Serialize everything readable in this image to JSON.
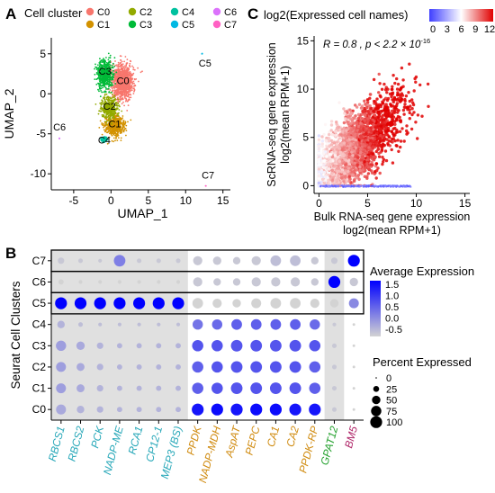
{
  "panels": {
    "A": {
      "letter": "A",
      "legend_title": "Cell cluster",
      "legend": [
        {
          "label": "C0",
          "color": "#f8766d"
        },
        {
          "label": "C1",
          "color": "#d39200"
        },
        {
          "label": "C2",
          "color": "#93aa00"
        },
        {
          "label": "C3",
          "color": "#00ba38"
        },
        {
          "label": "C4",
          "color": "#00c19f"
        },
        {
          "label": "C5",
          "color": "#00b9e3"
        },
        {
          "label": "C6",
          "color": "#db72fb"
        },
        {
          "label": "C7",
          "color": "#ff61c3"
        }
      ],
      "cluster_labels": [
        {
          "label": "C0",
          "x": 1.6,
          "y": 1.2
        },
        {
          "label": "C3",
          "x": -0.8,
          "y": 2.4
        },
        {
          "label": "C2",
          "x": -0.2,
          "y": -2.0
        },
        {
          "label": "C1",
          "x": 0.5,
          "y": -4.2
        },
        {
          "label": "C4",
          "x": -0.9,
          "y": -6.2
        },
        {
          "label": "C5",
          "x": 12.6,
          "y": 3.4
        },
        {
          "label": "C6",
          "x": -6.9,
          "y": -4.6
        },
        {
          "label": "C7",
          "x": 13.0,
          "y": -10.6
        }
      ]
    },
    "C": {
      "letter": "C",
      "colorbar_title": "log2(Expressed cell names)",
      "colorbar_ticks": [
        "0",
        "3",
        "6",
        "9",
        "12"
      ],
      "stat_text": "R = 0.8 , p < 2.2 × 10",
      "stat_exp": "-16"
    },
    "B": {
      "letter": "B",
      "size_legend_title": "Percent Expressed",
      "color_legend_title": "Average Expression",
      "color_ticks": [
        "1.5",
        "1.0",
        "0.5",
        "0.0",
        "-0.5"
      ],
      "size_ticks": [
        "0",
        "25",
        "50",
        "75",
        "100"
      ]
    }
  },
  "chart_data": [
    {
      "type": "scatter",
      "title": "",
      "xlabel": "UMAP_1",
      "ylabel": "UMAP_2",
      "xlim": [
        -8,
        16
      ],
      "ylim": [
        -12,
        7
      ],
      "xticks": [
        -5,
        0,
        5,
        10,
        15
      ],
      "yticks": [
        -10,
        -5,
        0,
        5
      ],
      "series": [
        {
          "name": "C0",
          "cx": 1.5,
          "cy": 1.5,
          "sx": 1.3,
          "sy": 2.0
        },
        {
          "name": "C1",
          "cx": 0.5,
          "cy": -4.0,
          "sx": 1.2,
          "sy": 1.2
        },
        {
          "name": "C2",
          "cx": -0.3,
          "cy": -1.8,
          "sx": 1.0,
          "sy": 1.2
        },
        {
          "name": "C3",
          "cx": -0.8,
          "cy": 2.4,
          "sx": 0.9,
          "sy": 1.6
        },
        {
          "name": "C4",
          "cx": -1.0,
          "cy": -5.7,
          "sx": 0.35,
          "sy": 0.3
        },
        {
          "name": "C5",
          "cx": 12.2,
          "cy": 5.0,
          "sx": 0.1,
          "sy": 0.1
        },
        {
          "name": "C6",
          "cx": -6.9,
          "cy": -5.6,
          "sx": 0.05,
          "sy": 0.05
        },
        {
          "name": "C7",
          "cx": 12.7,
          "cy": -11.5,
          "sx": 0.03,
          "sy": 0.03
        }
      ]
    },
    {
      "type": "scatter",
      "title": "",
      "xlabel": "Bulk RNA-seq gene expression",
      "xlabel2": "log2(mean RPM+1)",
      "ylabel": "ScRNA-seq gene expression",
      "ylabel2": "log2(mean RPM+1)",
      "xlim": [
        -0.5,
        15.5
      ],
      "ylim": [
        -0.8,
        15.5
      ],
      "xticks": [
        0,
        5,
        10,
        15
      ],
      "yticks": [
        0,
        5,
        10,
        15
      ],
      "R": 0.8,
      "p": "2.2e-16",
      "colorscale": {
        "min": 0,
        "max": 12,
        "colors": [
          "#3f3fff",
          "#ffffff",
          "#e00000"
        ]
      }
    },
    {
      "type": "dot",
      "xlabel": "",
      "ylabel": "Seurat Cell Clusters",
      "genes": [
        {
          "name": "RBCS1",
          "color": "#26a7b8"
        },
        {
          "name": "RBCS2",
          "color": "#26a7b8"
        },
        {
          "name": "PCK",
          "color": "#26a7b8"
        },
        {
          "name": "NADP-ME",
          "color": "#26a7b8"
        },
        {
          "name": "RCA1",
          "color": "#26a7b8"
        },
        {
          "name": "CP12-1",
          "color": "#26a7b8"
        },
        {
          "name": "MEP3 (BS)",
          "color": "#26a7b8"
        },
        {
          "name": "PPDK",
          "color": "#d08b10"
        },
        {
          "name": "NADP-MDH",
          "color": "#d08b10"
        },
        {
          "name": "AspAT",
          "color": "#d08b10"
        },
        {
          "name": "PEPC",
          "color": "#d08b10"
        },
        {
          "name": "CA1",
          "color": "#d08b10"
        },
        {
          "name": "CA2",
          "color": "#d08b10"
        },
        {
          "name": "PPDK-RP",
          "color": "#d08b10"
        },
        {
          "name": "GPAT12",
          "color": "#22a02c"
        },
        {
          "name": "BM5",
          "color": "#b0286a"
        }
      ],
      "clusters": [
        "C7",
        "C6",
        "C5",
        "C4",
        "C3",
        "C2",
        "C1",
        "C0"
      ],
      "avg_expression": [
        [
          -0.4,
          -0.4,
          -0.4,
          0.3,
          -0.4,
          -0.4,
          -0.4,
          -0.4,
          -0.4,
          -0.4,
          -0.4,
          -0.3,
          -0.3,
          -0.4,
          -0.4,
          2.0
        ],
        [
          -0.5,
          -0.5,
          -0.5,
          -0.5,
          -0.5,
          -0.5,
          -0.5,
          -0.4,
          -0.4,
          -0.4,
          -0.4,
          -0.4,
          -0.4,
          -0.4,
          2.0,
          -0.4
        ],
        [
          2.0,
          2.0,
          2.0,
          2.0,
          2.0,
          2.0,
          2.0,
          -0.5,
          -0.5,
          -0.5,
          -0.5,
          -0.5,
          -0.5,
          -0.5,
          -0.5,
          0.2
        ],
        [
          -0.2,
          -0.3,
          -0.3,
          -0.3,
          -0.3,
          -0.3,
          -0.3,
          0.4,
          0.5,
          0.6,
          0.6,
          0.6,
          0.6,
          0.5,
          -0.4,
          -0.5
        ],
        [
          0.0,
          -0.1,
          -0.2,
          -0.2,
          -0.2,
          -0.2,
          -0.2,
          0.7,
          0.7,
          0.7,
          0.7,
          0.7,
          0.7,
          0.7,
          -0.4,
          -0.5
        ],
        [
          0.0,
          -0.1,
          -0.2,
          -0.2,
          -0.2,
          -0.2,
          -0.2,
          0.6,
          0.7,
          0.7,
          0.7,
          0.7,
          0.7,
          0.6,
          -0.4,
          -0.5
        ],
        [
          0.0,
          -0.1,
          -0.2,
          -0.2,
          -0.2,
          -0.2,
          -0.2,
          0.6,
          0.7,
          0.7,
          0.7,
          0.7,
          0.7,
          0.6,
          -0.4,
          -0.5
        ],
        [
          -0.1,
          -0.2,
          -0.2,
          -0.2,
          -0.2,
          -0.2,
          -0.2,
          1.3,
          1.4,
          1.3,
          1.4,
          1.4,
          1.3,
          1.3,
          -0.4,
          -0.5
        ]
      ],
      "pct_expressed": [
        [
          30,
          15,
          10,
          95,
          15,
          15,
          15,
          60,
          50,
          40,
          60,
          80,
          80,
          40,
          30,
          100
        ],
        [
          20,
          10,
          10,
          10,
          10,
          10,
          10,
          60,
          40,
          40,
          60,
          60,
          60,
          40,
          100,
          50
        ],
        [
          100,
          100,
          100,
          100,
          100,
          100,
          100,
          80,
          60,
          50,
          70,
          80,
          80,
          60,
          50,
          70
        ],
        [
          40,
          15,
          10,
          10,
          10,
          10,
          10,
          75,
          75,
          80,
          80,
          80,
          80,
          75,
          10,
          5
        ],
        [
          75,
          50,
          30,
          20,
          20,
          20,
          20,
          90,
          90,
          95,
          95,
          95,
          95,
          90,
          15,
          5
        ],
        [
          70,
          45,
          30,
          20,
          20,
          20,
          20,
          90,
          90,
          95,
          95,
          95,
          95,
          90,
          15,
          5
        ],
        [
          70,
          45,
          30,
          20,
          20,
          20,
          20,
          90,
          90,
          95,
          95,
          95,
          95,
          90,
          15,
          5
        ],
        [
          70,
          40,
          30,
          20,
          20,
          20,
          20,
          100,
          100,
          100,
          100,
          100,
          100,
          100,
          15,
          5
        ]
      ],
      "color_scale": {
        "min": -0.5,
        "max": 1.5,
        "low": "#d3d3d3",
        "high": "#0000ff"
      },
      "shaded_columns": [
        0,
        1,
        2,
        3,
        4,
        5,
        6,
        14
      ],
      "boxed_rows": [
        0,
        1,
        2
      ]
    }
  ]
}
